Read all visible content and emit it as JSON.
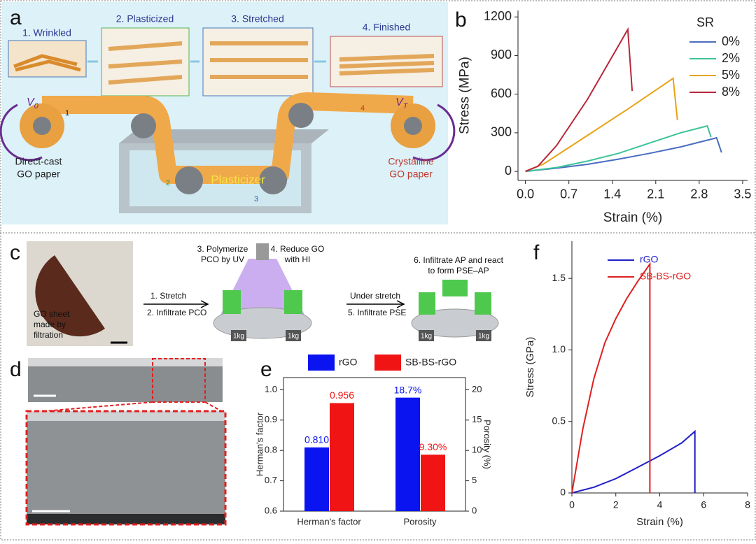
{
  "panel_labels": [
    "a",
    "b",
    "c",
    "d",
    "e",
    "f"
  ],
  "panel_a": {
    "steps": [
      "1. Wrinkled",
      "2. Plasticized",
      "3. Stretched",
      "4. Finished"
    ],
    "v0": {
      "base": "V",
      "sub": "0"
    },
    "vt": {
      "base": "V",
      "sub": "T"
    },
    "markers": [
      "1",
      "2",
      "3",
      "4"
    ],
    "left_label": [
      "Direct-cast",
      "GO paper"
    ],
    "right_label": [
      "Crystalline",
      "GO paper"
    ],
    "bath_label": "Plasticizer"
  },
  "panel_c": {
    "photo_caption": [
      "GO sheet",
      "made by",
      "filtration"
    ],
    "arrow1": [
      "1. Stretch",
      "2. Infiltrate PCO"
    ],
    "uv_step": [
      "3. Polymerize",
      "PCO by UV"
    ],
    "hi_step": [
      "4. Reduce GO",
      "with HI"
    ],
    "arrow2": [
      "Under stretch",
      "5. Infiltrate PSE"
    ],
    "final_step": [
      "6. Infiltrate AP and react",
      "to form PSE–AP"
    ],
    "weight": "1kg"
  },
  "chart_data": [
    {
      "type": "line",
      "xlabel": "Strain (%)",
      "ylabel": "Stress (MPa)",
      "legend_title": "SR",
      "legend": "upper right",
      "xlim": [
        -0.12,
        3.58
      ],
      "ylim": [
        -70,
        1250
      ],
      "xticks": [
        {
          "value": 0,
          "label": "0.0"
        },
        0.7,
        1.4,
        2.1,
        2.8,
        3.5
      ],
      "yticks": [
        0,
        300,
        600,
        900,
        1200
      ],
      "series": [
        {
          "name": "0%",
          "color": "#4a6cc0",
          "x": [
            0,
            0.5,
            1.0,
            1.5,
            2.0,
            2.5,
            3.08,
            3.16
          ],
          "values": [
            0,
            25,
            55,
            95,
            140,
            190,
            261,
            147
          ]
        },
        {
          "name": "2%",
          "color": "#3cc39a",
          "x": [
            0,
            0.5,
            1.0,
            1.5,
            2.0,
            2.5,
            2.93,
            2.99
          ],
          "values": [
            0,
            30,
            80,
            140,
            220,
            300,
            353,
            266
          ]
        },
        {
          "name": "5%",
          "color": "#e8a317",
          "x": [
            0,
            0.3,
            1.0,
            1.7,
            2.38,
            2.45
          ],
          "values": [
            0,
            60,
            280,
            500,
            723,
            397
          ]
        },
        {
          "name": "8%",
          "color": "#b8263a",
          "x": [
            0,
            0.2,
            0.5,
            1.0,
            1.65,
            1.72
          ],
          "values": [
            0,
            40,
            200,
            560,
            1103,
            625
          ]
        }
      ]
    },
    {
      "type": "bar",
      "ylabel": "Herman's factor",
      "y2label": "Porosity (%)",
      "legend": "top",
      "categories": [
        "Herman's factor",
        "Porosity"
      ],
      "category_axes": [
        "y",
        "y2"
      ],
      "ylim": [
        0.6,
        1.04
      ],
      "yticks": [
        0.6,
        0.7,
        0.8,
        0.9,
        {
          "value": 1,
          "label": "1.0"
        }
      ],
      "y2lim": [
        0,
        22
      ],
      "y2ticks": [
        0,
        5,
        10,
        15,
        20
      ],
      "series": [
        {
          "name": "rGO",
          "color": "#0a14f0",
          "values": [
            0.81,
            18.7
          ],
          "value_labels": [
            "0.810",
            "18.7%"
          ]
        },
        {
          "name": "SB-BS-rGO",
          "color": "#f01414",
          "values": [
            0.956,
            9.3
          ],
          "value_labels": [
            "0.956",
            "9.30%"
          ]
        }
      ]
    },
    {
      "type": "line",
      "xlabel": "Strain (%)",
      "ylabel": "Stress (GPa)",
      "legend": "upper left",
      "xlim": [
        0,
        8
      ],
      "ylim": [
        0,
        1.76
      ],
      "xticks": [
        0,
        2,
        4,
        6,
        8
      ],
      "yticks": [
        0,
        0.5,
        {
          "value": 1,
          "label": "1.0"
        },
        1.5
      ],
      "series": [
        {
          "name": "rGO",
          "color": "#1f1fc8",
          "x": [
            0,
            1,
            2,
            3,
            4,
            5,
            5.6,
            5.6
          ],
          "values": [
            0,
            0.04,
            0.1,
            0.18,
            0.26,
            0.35,
            0.43,
            0
          ]
        },
        {
          "name": "SB-BS-rGO",
          "color": "#e02020",
          "x": [
            0,
            0.5,
            1,
            1.5,
            2,
            2.5,
            3,
            3.55,
            3.55
          ],
          "values": [
            0,
            0.45,
            0.8,
            1.05,
            1.22,
            1.36,
            1.48,
            1.6,
            0
          ]
        }
      ]
    }
  ]
}
